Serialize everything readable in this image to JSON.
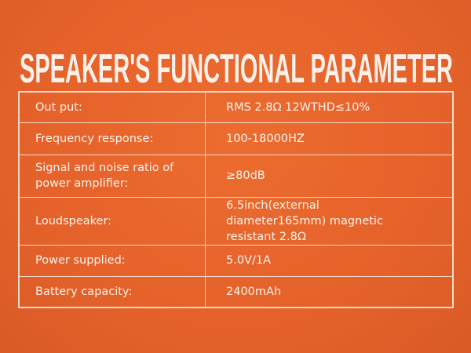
{
  "title": "SPEAKER'S FUNCTIONAL PARAMETER",
  "rows": [
    {
      "label": "Out put:",
      "value": "RMS 2.8Ω 12WTHD≤10%"
    },
    {
      "label": "Frequency response:",
      "value": "100-18000HZ"
    },
    {
      "label": "Signal and noise ratio of power amplifier:",
      "value": "≥80dB"
    },
    {
      "label": "Loudspeaker:",
      "value": "6.5inch(external diameter165mm) magnetic resistant 2.8Ω"
    },
    {
      "label": "Power supplied:",
      "value": "5.0V/1A"
    },
    {
      "label": "Battery capacity:",
      "value": "2400mAh"
    }
  ],
  "colors": {
    "background": "#e8652b",
    "text": "#fdf3ec"
  }
}
